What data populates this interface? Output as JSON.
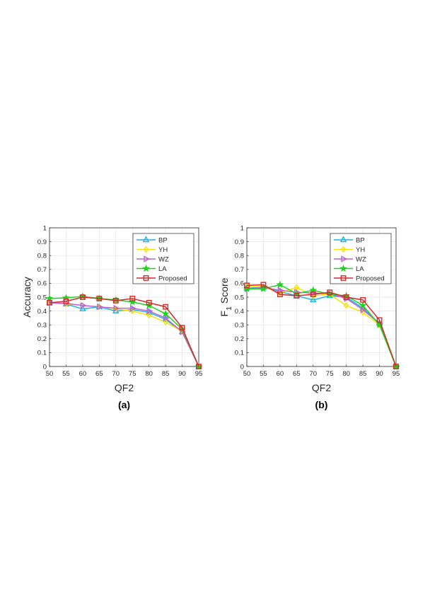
{
  "chart_data": [
    {
      "type": "line",
      "caption": "(a)",
      "xlabel": "QF2",
      "ylabel": "Accuracy",
      "ylabel_sub": "",
      "ylabel_rest": "",
      "x": [
        50,
        55,
        60,
        65,
        70,
        75,
        80,
        85,
        90,
        95
      ],
      "xlim": [
        50,
        95
      ],
      "ylim": [
        0,
        1
      ],
      "xticks": [
        "50",
        "55",
        "60",
        "65",
        "70",
        "75",
        "80",
        "85",
        "90",
        "95"
      ],
      "yticks": [
        "0",
        "0.1",
        "0.2",
        "0.3",
        "0.4",
        "0.5",
        "0.6",
        "0.7",
        "0.8",
        "0.9",
        "1"
      ],
      "grid": true,
      "legend_position": "top-right",
      "series": [
        {
          "name": "BP",
          "color": "#1eb1e6",
          "marker": "triangle-up",
          "values": [
            0.46,
            0.45,
            0.415,
            0.43,
            0.4,
            0.41,
            0.39,
            0.34,
            0.25,
            0.0
          ]
        },
        {
          "name": "YH",
          "color": "#f5e10a",
          "marker": "diamond",
          "values": [
            0.46,
            0.45,
            0.44,
            0.43,
            0.415,
            0.4,
            0.37,
            0.32,
            0.255,
            0.0
          ]
        },
        {
          "name": "WZ",
          "color": "#c063cf",
          "marker": "triangle-right",
          "values": [
            0.46,
            0.455,
            0.44,
            0.43,
            0.42,
            0.42,
            0.4,
            0.35,
            0.25,
            0.0
          ]
        },
        {
          "name": "LA",
          "color": "#1ed21e",
          "marker": "star",
          "values": [
            0.49,
            0.495,
            0.505,
            0.49,
            0.48,
            0.465,
            0.44,
            0.38,
            0.27,
            0.0
          ]
        },
        {
          "name": "Proposed",
          "color": "#d42a2a",
          "marker": "square",
          "values": [
            0.46,
            0.47,
            0.5,
            0.49,
            0.475,
            0.49,
            0.46,
            0.43,
            0.28,
            0.0
          ]
        }
      ]
    },
    {
      "type": "line",
      "caption": "(b)",
      "xlabel": "QF2",
      "ylabel": "F",
      "ylabel_sub": "1",
      "ylabel_rest": " Score",
      "x": [
        50,
        55,
        60,
        65,
        70,
        75,
        80,
        85,
        90,
        95
      ],
      "xlim": [
        50,
        95
      ],
      "ylim": [
        0,
        1
      ],
      "xticks": [
        "50",
        "55",
        "60",
        "65",
        "70",
        "75",
        "80",
        "85",
        "90",
        "95"
      ],
      "yticks": [
        "0",
        "0.1",
        "0.2",
        "0.3",
        "0.4",
        "0.5",
        "0.6",
        "0.7",
        "0.8",
        "0.9",
        "1"
      ],
      "grid": true,
      "legend_position": "top-right",
      "series": [
        {
          "name": "BP",
          "color": "#1eb1e6",
          "marker": "triangle-up",
          "values": [
            0.565,
            0.57,
            0.54,
            0.51,
            0.48,
            0.51,
            0.5,
            0.42,
            0.31,
            0.0
          ]
        },
        {
          "name": "YH",
          "color": "#f5e10a",
          "marker": "diamond",
          "values": [
            0.58,
            0.575,
            0.53,
            0.57,
            0.51,
            0.52,
            0.44,
            0.39,
            0.3,
            0.0
          ]
        },
        {
          "name": "WZ",
          "color": "#c063cf",
          "marker": "triangle-right",
          "values": [
            0.56,
            0.57,
            0.55,
            0.535,
            0.53,
            0.525,
            0.49,
            0.41,
            0.31,
            0.0
          ]
        },
        {
          "name": "LA",
          "color": "#1ed21e",
          "marker": "star",
          "values": [
            0.56,
            0.56,
            0.59,
            0.525,
            0.55,
            0.52,
            0.51,
            0.44,
            0.3,
            0.0
          ]
        },
        {
          "name": "Proposed",
          "color": "#d42a2a",
          "marker": "square",
          "values": [
            0.585,
            0.59,
            0.52,
            0.51,
            0.52,
            0.535,
            0.5,
            0.48,
            0.335,
            0.0
          ]
        }
      ]
    }
  ]
}
